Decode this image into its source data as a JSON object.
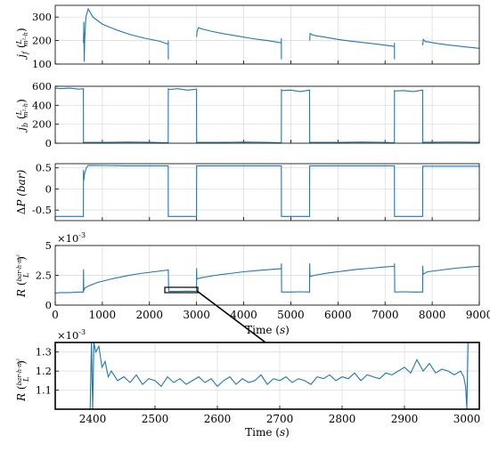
{
  "chart_data": [
    {
      "type": "line",
      "id": "jf",
      "ylabel": "j_f (L / m²·h)",
      "xlim": [
        0,
        9000
      ],
      "ylim": [
        100,
        350
      ],
      "yticks": [
        "100",
        "200",
        "300"
      ],
      "grid": true,
      "color": "#1f77b4",
      "x": [
        0,
        598,
        600,
        606,
        615,
        626,
        650,
        700,
        800,
        1000,
        1300,
        1600,
        1900,
        2200,
        2398,
        2399,
        2400,
        2410,
        2420,
        2430,
        2999,
        3000,
        3010,
        3040,
        3100,
        3300,
        3600,
        3900,
        4200,
        4500,
        4798,
        4799,
        4800,
        4810,
        4820,
        4830,
        5399,
        5400,
        5410,
        5450,
        5500,
        5700,
        6000,
        6300,
        6600,
        6900,
        7198,
        7199,
        7200,
        7210,
        7220,
        7230,
        7799,
        7800,
        7810,
        7860,
        7900,
        8100,
        8400,
        8700,
        9000
      ],
      "y": [
        null,
        null,
        190,
        280,
        110,
        205,
        300,
        335,
        300,
        270,
        245,
        225,
        210,
        198,
        185,
        200,
        120,
        null,
        null,
        null,
        null,
        215,
        240,
        255,
        250,
        240,
        228,
        218,
        208,
        200,
        190,
        210,
        120,
        null,
        null,
        null,
        null,
        200,
        230,
        225,
        222,
        215,
        205,
        197,
        190,
        183,
        175,
        190,
        120,
        null,
        null,
        null,
        null,
        180,
        205,
        195,
        195,
        188,
        180,
        173,
        167
      ]
    },
    {
      "type": "line",
      "id": "jb",
      "ylabel": "j_b (L / m²·h)",
      "xlim": [
        0,
        9000
      ],
      "ylim": [
        0,
        600
      ],
      "yticks": [
        "0",
        "200",
        "400",
        "600"
      ],
      "grid": true,
      "color": "#1f77b4",
      "x": [
        0,
        100,
        300,
        500,
        598,
        600,
        602,
        1000,
        1500,
        2000,
        2398,
        2400,
        2402,
        2600,
        2800,
        2998,
        3000,
        3002,
        3500,
        4000,
        4500,
        4798,
        4800,
        4802,
        5000,
        5200,
        5398,
        5400,
        5402,
        6000,
        6500,
        7000,
        7198,
        7200,
        7202,
        7400,
        7600,
        7798,
        7800,
        7802,
        8400,
        9000
      ],
      "y": [
        580,
        575,
        580,
        570,
        575,
        0,
        10,
        8,
        12,
        10,
        5,
        580,
        565,
        575,
        560,
        570,
        0,
        10,
        8,
        12,
        9,
        5,
        570,
        555,
        560,
        545,
        560,
        0,
        10,
        8,
        12,
        9,
        5,
        560,
        550,
        555,
        545,
        560,
        0,
        10,
        12,
        10
      ]
    },
    {
      "type": "line",
      "id": "dp",
      "ylabel": "ΔP (bar)",
      "xlim": [
        0,
        9000
      ],
      "ylim": [
        -0.75,
        0.6
      ],
      "yticks": [
        "-0.5",
        "0",
        "0.5"
      ],
      "grid": true,
      "color": "#1f77b4",
      "x": [
        0,
        598,
        600,
        605,
        620,
        660,
        700,
        1500,
        2398,
        2400,
        2998,
        3000,
        3600,
        4798,
        4800,
        5398,
        5400,
        6300,
        7198,
        7200,
        7798,
        7800,
        8400,
        9000
      ],
      "y": [
        -0.65,
        -0.65,
        0.45,
        0.2,
        0.35,
        0.5,
        0.56,
        0.55,
        0.55,
        -0.65,
        -0.65,
        0.55,
        0.55,
        0.55,
        -0.65,
        -0.65,
        0.55,
        0.55,
        0.55,
        -0.65,
        -0.65,
        0.54,
        0.54,
        0.54
      ]
    },
    {
      "type": "line",
      "id": "r",
      "ylabel": "R (bar·h·m² / L)",
      "exponent_label": "×10",
      "exponent_power": "-3",
      "xlim": [
        0,
        9000
      ],
      "ylim": [
        0,
        5
      ],
      "yticks": [
        "0",
        "2.5",
        "5"
      ],
      "xticks": [
        "0",
        "1000",
        "2000",
        "3000",
        "4000",
        "5000",
        "6000",
        "7000",
        "8000",
        "9000"
      ],
      "xlabel": "Time (s)",
      "grid": true,
      "color": "#1f77b4",
      "x": [
        0,
        100,
        300,
        500,
        598,
        600,
        605,
        620,
        700,
        900,
        1200,
        1500,
        1800,
        2100,
        2398,
        2400,
        2405,
        2410,
        2600,
        2800,
        2998,
        3000,
        3005,
        3010,
        3100,
        3400,
        3700,
        4000,
        4300,
        4600,
        4798,
        4800,
        4805,
        5000,
        5200,
        5398,
        5400,
        5405,
        5410,
        5500,
        5800,
        6100,
        6400,
        6700,
        7000,
        7198,
        7200,
        7205,
        7400,
        7600,
        7798,
        7800,
        7805,
        7810,
        7900,
        8200,
        8500,
        8800,
        9000
      ],
      "y": [
        1.0,
        1.05,
        1.05,
        1.1,
        1.1,
        3.0,
        1.2,
        1.4,
        1.6,
        1.9,
        2.2,
        2.45,
        2.65,
        2.8,
        2.95,
        3.0,
        1.6,
        1.15,
        1.15,
        1.17,
        1.16,
        3.1,
        2.3,
        2.2,
        2.3,
        2.5,
        2.65,
        2.8,
        2.9,
        3.0,
        3.05,
        3.5,
        1.1,
        1.1,
        1.12,
        1.1,
        3.5,
        2.5,
        2.4,
        2.5,
        2.7,
        2.85,
        3.0,
        3.1,
        3.2,
        3.25,
        3.5,
        1.1,
        1.12,
        1.1,
        1.1,
        3.3,
        2.7,
        2.6,
        2.8,
        2.95,
        3.1,
        3.2,
        3.25
      ]
    },
    {
      "type": "line",
      "id": "r_zoom",
      "ylabel": "R (bar·h·m² / L)",
      "exponent_label": "×10",
      "exponent_power": "-3",
      "xlim": [
        2340,
        3020
      ],
      "ylim": [
        1.0,
        1.35
      ],
      "yticks": [
        "1.1",
        "1.2",
        "1.3"
      ],
      "xticks": [
        "2400",
        "2500",
        "2600",
        "2700",
        "2800",
        "2900",
        "3000"
      ],
      "xlabel": "Time (s)",
      "grid": true,
      "color": "#1f77b4",
      "x": [
        2396,
        2398,
        2400,
        2402,
        2405,
        2410,
        2415,
        2420,
        2425,
        2430,
        2440,
        2450,
        2460,
        2470,
        2480,
        2490,
        2500,
        2510,
        2520,
        2530,
        2540,
        2550,
        2560,
        2570,
        2580,
        2590,
        2600,
        2610,
        2620,
        2630,
        2640,
        2650,
        2660,
        2670,
        2680,
        2690,
        2700,
        2710,
        2720,
        2730,
        2740,
        2750,
        2760,
        2770,
        2780,
        2790,
        2800,
        2810,
        2820,
        2830,
        2840,
        2850,
        2860,
        2870,
        2880,
        2890,
        2900,
        2910,
        2920,
        2930,
        2940,
        2950,
        2960,
        2970,
        2980,
        2990,
        2995,
        2998,
        3000,
        3002,
        3010
      ],
      "y": [
        1.0,
        1.35,
        1.0,
        1.35,
        1.3,
        1.33,
        1.22,
        1.25,
        1.17,
        1.2,
        1.15,
        1.17,
        1.14,
        1.18,
        1.13,
        1.16,
        1.15,
        1.12,
        1.17,
        1.14,
        1.16,
        1.13,
        1.15,
        1.17,
        1.14,
        1.16,
        1.12,
        1.15,
        1.17,
        1.13,
        1.16,
        1.14,
        1.15,
        1.18,
        1.13,
        1.16,
        1.15,
        1.17,
        1.14,
        1.16,
        1.15,
        1.13,
        1.17,
        1.16,
        1.18,
        1.15,
        1.17,
        1.16,
        1.19,
        1.15,
        1.18,
        1.17,
        1.16,
        1.19,
        1.18,
        1.2,
        1.22,
        1.19,
        1.26,
        1.2,
        1.24,
        1.19,
        1.21,
        1.2,
        1.18,
        1.2,
        1.17,
        1.12,
        1.0,
        1.35,
        1.35
      ]
    }
  ]
}
